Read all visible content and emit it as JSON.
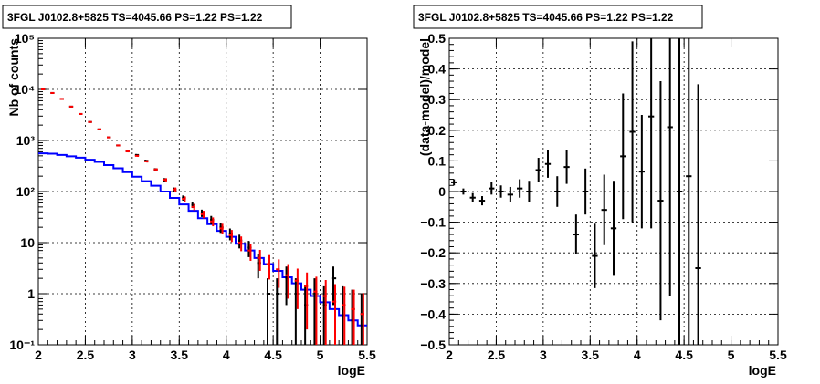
{
  "chart_data": [
    {
      "type": "line",
      "title": "3FGL J0102.8+5825 TS=4045.66 PS=1.22 PS=1.22",
      "xlabel": "logE",
      "ylabel": "Nb of counts",
      "xlim": [
        2,
        5.5
      ],
      "ylim": [
        0.1,
        100000
      ],
      "yscale": "log",
      "grid": true,
      "x_ticks": [
        "2",
        "2.5",
        "3",
        "3.5",
        "4",
        "4.5",
        "5",
        "5.5"
      ],
      "y_ticks": [
        "10⁻¹",
        "1",
        "10",
        "10²",
        "10³",
        "10⁴",
        "10⁵"
      ],
      "x": [
        2.05,
        2.15,
        2.25,
        2.35,
        2.45,
        2.55,
        2.65,
        2.75,
        2.85,
        2.95,
        3.05,
        3.15,
        3.25,
        3.35,
        3.45,
        3.55,
        3.65,
        3.75,
        3.85,
        3.95,
        4.05,
        4.15,
        4.25,
        4.35,
        4.45,
        4.55,
        4.65,
        4.75,
        4.85,
        4.95,
        5.05,
        5.15,
        5.25,
        5.35,
        5.45
      ],
      "series": [
        {
          "color": "#000000",
          "values": [
            10000,
            8500,
            6500,
            4600,
            3300,
            2300,
            1650,
            1150,
            800,
            620,
            520,
            400,
            270,
            170,
            110,
            75,
            55,
            38,
            28,
            20,
            15,
            11,
            8,
            4,
            1,
            1,
            2,
            1,
            0.6,
            1,
            0.6,
            2,
            0.6,
            0.5,
            0.4
          ],
          "errors": [
            100,
            92,
            80,
            68,
            57,
            48,
            41,
            34,
            28,
            25,
            23,
            20,
            16,
            13,
            10,
            8.7,
            7.4,
            6.2,
            5.3,
            4.5,
            3.9,
            3.3,
            2.8,
            2,
            1,
            1,
            1.4,
            1,
            0.8,
            1,
            0.8,
            1.4,
            0.8,
            0.7,
            0.6
          ]
        },
        {
          "color": "#ff0000",
          "values": [
            10000,
            8500,
            6500,
            4600,
            3300,
            2300,
            1650,
            1150,
            800,
            610,
            500,
            390,
            270,
            170,
            110,
            72,
            50,
            36,
            26,
            19,
            14,
            10,
            7,
            5,
            3.8,
            3,
            2.3,
            1.8,
            1.4,
            1.1,
            0.9,
            0.7,
            0.6,
            0.5,
            0.4
          ],
          "errors": [
            100,
            92,
            80,
            68,
            57,
            48,
            41,
            34,
            28,
            25,
            22,
            20,
            16,
            13,
            10,
            8.5,
            7.1,
            6,
            5.1,
            4.4,
            3.7,
            3.2,
            2.6,
            2.2,
            1.9,
            1.7,
            1.5,
            1.3,
            1.2,
            1.05,
            0.95,
            0.84,
            0.77,
            0.7,
            0.63
          ]
        },
        {
          "color": "#0000ff",
          "style": "step",
          "values": [
            560,
            550,
            520,
            490,
            460,
            420,
            380,
            330,
            285,
            240,
            195,
            160,
            130,
            100,
            75,
            56,
            42,
            30,
            23,
            17,
            13,
            9.5,
            7,
            5,
            3.8,
            2.8,
            2.1,
            1.6,
            1.2,
            0.9,
            0.68,
            0.5,
            0.38,
            0.3,
            0.24
          ]
        }
      ]
    },
    {
      "type": "scatter",
      "title": "3FGL J0102.8+5825 TS=4045.66 PS=1.22 PS=1.22",
      "xlabel": "logE",
      "ylabel": "(data-model)/model",
      "xlim": [
        2,
        5.5
      ],
      "ylim": [
        -0.5,
        0.5
      ],
      "grid": true,
      "x_ticks": [
        "2",
        "2.5",
        "3",
        "3.5",
        "4",
        "4.5",
        "5",
        "5.5"
      ],
      "y_ticks": [
        "−0.5",
        "−0.4",
        "−0.3",
        "−0.2",
        "−0.1",
        "0",
        "0.1",
        "0.2",
        "0.3",
        "0.4",
        "0.5"
      ],
      "x": [
        2.05,
        2.15,
        2.25,
        2.35,
        2.45,
        2.55,
        2.65,
        2.75,
        2.85,
        2.95,
        3.05,
        3.15,
        3.25,
        3.35,
        3.45,
        3.55,
        3.65,
        3.75,
        3.85,
        3.95,
        4.05,
        4.15,
        4.25,
        4.35,
        4.45,
        4.55,
        4.65
      ],
      "y": [
        0.03,
        0.0,
        -0.02,
        -0.03,
        0.01,
        0.0,
        -0.01,
        0.01,
        0.0,
        0.07,
        0.09,
        0.0,
        0.08,
        -0.14,
        0.0,
        -0.21,
        -0.06,
        -0.12,
        0.115,
        0.195,
        0.065,
        0.245,
        -0.03,
        0.21,
        0.0,
        0.05,
        -0.25
      ],
      "yerr": [
        0.01,
        0.01,
        0.015,
        0.015,
        0.02,
        0.02,
        0.025,
        0.03,
        0.035,
        0.04,
        0.045,
        0.05,
        0.055,
        0.065,
        0.075,
        0.105,
        0.115,
        0.155,
        0.205,
        0.295,
        0.185,
        0.365,
        0.39,
        0.55,
        0.6,
        0.6,
        0.6
      ],
      "color": "#000000"
    }
  ]
}
